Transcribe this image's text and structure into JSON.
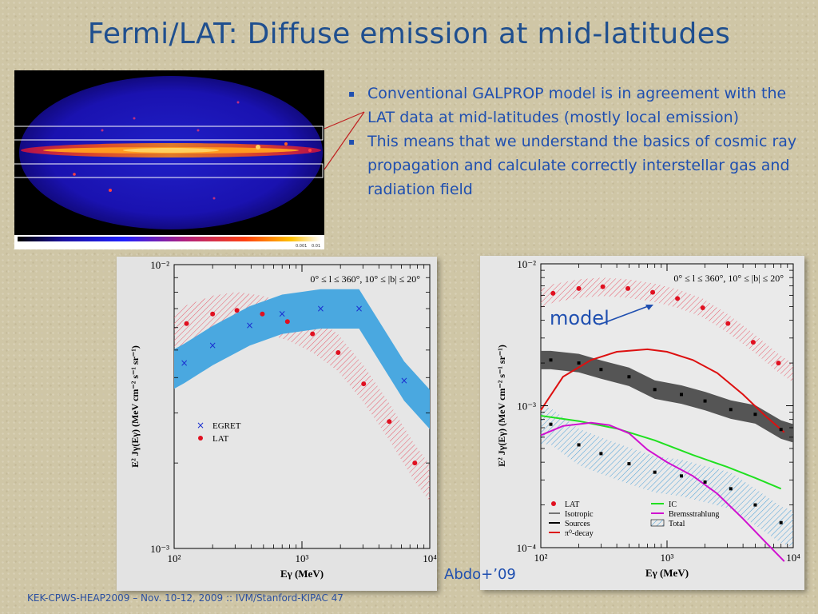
{
  "slide": {
    "title": "Fermi/LAT: Diffuse emission at mid-latitudes",
    "bullets": [
      "Conventional GALPROP model is in agreement with the LAT data at mid-latitudes (mostly local emission)",
      "This means that we understand the basics of cosmic ray propagation and calculate correctly interstellar gas and radiation field"
    ],
    "model_label": "model",
    "citation": "Abdo+’09",
    "footer": "KEK-CPWS-HEAP2009 – Nov. 10-12, 2009 :: IVM/Stanford-KIPAC  47",
    "colorbar_ticks": [
      "0.001",
      "0.01"
    ],
    "colors": {
      "title": "#1f4f8f",
      "text": "#1f4fb0",
      "background": "#cfc6a6"
    }
  },
  "chart_data": [
    {
      "type": "scatter",
      "region_label": "0° ≤ l ≤ 360°, 10° ≤ |b| ≤ 20°",
      "xlabel": "Eγ (MeV)",
      "ylabel": "E² Jγ(Eγ) (MeV cm⁻² s⁻¹ sr⁻¹)",
      "xscale": "log",
      "yscale": "log",
      "xlim": [
        100,
        10000
      ],
      "ylim": [
        0.001,
        0.01
      ],
      "x_ticks": [
        "10²",
        "10³",
        "10⁴"
      ],
      "y_ticks": [
        "10⁻²",
        "10⁻³"
      ],
      "series": [
        {
          "name": "EGRET",
          "marker": "x",
          "color": "#1a2fd0",
          "x": [
            120,
            200,
            390,
            700,
            1400,
            2800,
            6300
          ],
          "y": [
            0.0045,
            0.0052,
            0.0061,
            0.0067,
            0.007,
            0.007,
            0.0039
          ]
        },
        {
          "name": "LAT",
          "marker": "circle",
          "color": "#e01020",
          "x": [
            125,
            200,
            310,
            490,
            770,
            1210,
            1920,
            3040,
            4820,
            7640
          ],
          "y": [
            0.0062,
            0.0067,
            0.0069,
            0.0067,
            0.0063,
            0.0057,
            0.0049,
            0.0038,
            0.0028,
            0.002
          ]
        }
      ]
    },
    {
      "type": "line",
      "region_label": "0° ≤ l ≤ 360°, 10° ≤ |b| ≤ 20°",
      "xlabel": "Eγ (MeV)",
      "ylabel": "E² Jγ(Eγ) (MeV cm⁻² s⁻¹ sr⁻¹)",
      "xscale": "log",
      "yscale": "log",
      "xlim": [
        100,
        10000
      ],
      "ylim": [
        0.0001,
        0.01
      ],
      "x_ticks": [
        "10²",
        "10³",
        "10⁴"
      ],
      "y_ticks": [
        "10⁻²",
        "10⁻³",
        "10⁻⁴"
      ],
      "legend_left": [
        "LAT",
        "Isotropic",
        "Sources",
        "π⁰-decay"
      ],
      "legend_right": [
        "IC",
        "Bremsstrahlung",
        "Total"
      ],
      "series": [
        {
          "name": "LAT",
          "color": "#e01020",
          "x": [
            125,
            200,
            310,
            490,
            770,
            1210,
            1920,
            3040,
            4820,
            7640
          ],
          "y": [
            0.0062,
            0.0067,
            0.0069,
            0.0067,
            0.0063,
            0.0057,
            0.0049,
            0.0038,
            0.0028,
            0.002
          ]
        },
        {
          "name": "Isotropic",
          "color": "#000000",
          "x": [
            120,
            200,
            300,
            500,
            800,
            1300,
            2000,
            3200,
            5000,
            8000
          ],
          "y": [
            0.00074,
            0.00053,
            0.00046,
            0.00039,
            0.00034,
            0.00032,
            0.00029,
            0.00026,
            0.0002,
            0.00015
          ]
        },
        {
          "name": "Sources",
          "color": "#000000",
          "x": [
            120,
            200,
            300,
            500,
            800,
            1300,
            2000,
            3200,
            5000,
            8000
          ],
          "y": [
            0.0021,
            0.002,
            0.0018,
            0.0016,
            0.0013,
            0.0012,
            0.00108,
            0.00094,
            0.00087,
            0.00068
          ]
        },
        {
          "name": "π⁰-decay",
          "color": "#dd1010",
          "x": [
            100,
            150,
            250,
            400,
            700,
            1000,
            1600,
            2500,
            4000,
            6000,
            8500
          ],
          "y": [
            0.00093,
            0.0016,
            0.0021,
            0.0024,
            0.0025,
            0.0024,
            0.0021,
            0.0017,
            0.0012,
            0.00085,
            0.00065
          ]
        },
        {
          "name": "IC",
          "color": "#20e020",
          "x": [
            100,
            200,
            400,
            800,
            1600,
            3000,
            5000,
            8000
          ],
          "y": [
            0.00085,
            0.00078,
            0.00069,
            0.00057,
            0.00045,
            0.00037,
            0.00031,
            0.00026
          ]
        },
        {
          "name": "Bremsstrahlung",
          "color": "#d010d0",
          "x": [
            100,
            150,
            250,
            350,
            500,
            700,
            1000,
            1600,
            2500,
            4000,
            6000,
            8500
          ],
          "y": [
            0.00062,
            0.00072,
            0.00076,
            0.00073,
            0.00064,
            0.00049,
            0.0004,
            0.00032,
            0.00024,
            0.00016,
            0.00011,
            8e-05
          ]
        },
        {
          "name": "Total",
          "color": "#4aa0d8",
          "x": [
            100,
            10000
          ],
          "y": [
            0.00055,
            0.00018
          ]
        }
      ]
    }
  ]
}
